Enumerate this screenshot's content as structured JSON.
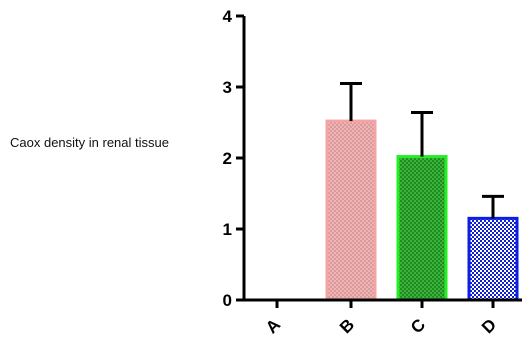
{
  "chart_data": {
    "type": "bar",
    "title": "",
    "xlabel": "",
    "ylabel": "Caox density in renal tissue",
    "categories": [
      "A",
      "B",
      "C",
      "D"
    ],
    "values": [
      0,
      2.52,
      2.02,
      1.15
    ],
    "errors": [
      0,
      0.53,
      0.62,
      0.31
    ],
    "ylim": [
      0,
      4
    ],
    "yticks": [
      "0",
      "1",
      "2",
      "3",
      "4"
    ],
    "grid": false,
    "legend": "none",
    "bar_colors": [
      {
        "fill": "#d8a8a8",
        "stroke": "#f0a0a0"
      },
      {
        "fill": "#f0a8a8",
        "stroke": "#f5a3a3"
      },
      {
        "fill": "#2fa02f",
        "stroke": "#22ee22"
      },
      {
        "fill": "#ffffff",
        "stroke": "#0a1ee6"
      }
    ]
  }
}
